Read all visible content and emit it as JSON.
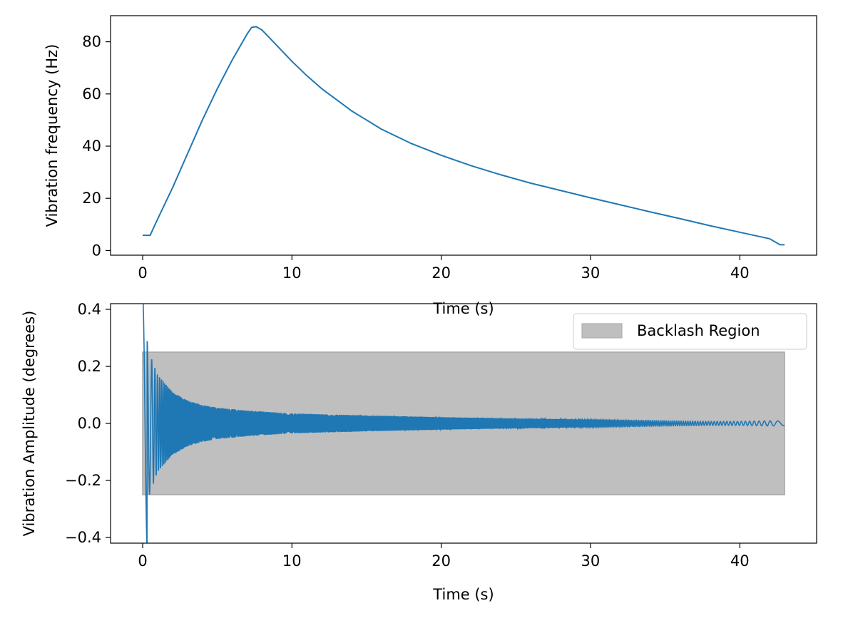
{
  "chart_data": [
    {
      "type": "line",
      "title": "",
      "xlabel": "Time (s)",
      "ylabel": "Vibration frequency (Hz)",
      "xlim": [
        -2.15,
        45.15
      ],
      "ylim": [
        -1.8,
        90.0
      ],
      "xticks": [
        0,
        10,
        20,
        30,
        40
      ],
      "yticks": [
        0,
        20,
        40,
        60,
        80
      ],
      "tick_labels_x": [
        "0",
        "10",
        "20",
        "30",
        "40"
      ],
      "tick_labels_y": [
        "0",
        "20",
        "40",
        "60",
        "80"
      ],
      "grid": false,
      "series": [
        {
          "color": "#1f77b4",
          "x": [
            0,
            0.5,
            1,
            2,
            3,
            4,
            5,
            6,
            6.5,
            7,
            7.3,
            7.6,
            8,
            8.5,
            9,
            10,
            11,
            12,
            14,
            16,
            18,
            20,
            22,
            24,
            26,
            28,
            30,
            32,
            34,
            36,
            38,
            40,
            42,
            42.7,
            43
          ],
          "y": [
            5.8,
            5.8,
            12,
            24,
            37,
            50,
            62,
            73,
            78,
            83,
            85.5,
            85.8,
            84.5,
            81.5,
            78.5,
            72.5,
            67,
            62,
            53.5,
            46.5,
            41,
            36.5,
            32.5,
            29,
            25.8,
            23,
            20.2,
            17.5,
            14.8,
            12.2,
            9.5,
            7,
            4.5,
            2.2,
            2.2
          ]
        }
      ]
    },
    {
      "type": "line",
      "title": "",
      "xlabel": "Time (s)",
      "ylabel": "Vibration Amplitude (degrees)",
      "xlim": [
        -2.15,
        45.15
      ],
      "ylim": [
        -0.42,
        0.42
      ],
      "xticks": [
        0,
        10,
        20,
        30,
        40
      ],
      "yticks": [
        -0.4,
        -0.2,
        0.0,
        0.2,
        0.4
      ],
      "tick_labels_x": [
        "0",
        "10",
        "20",
        "30",
        "40"
      ],
      "tick_labels_y": [
        "−0.4",
        "−0.2",
        "0.0",
        "0.2",
        "0.4"
      ],
      "grid": false,
      "legend": {
        "position": "top-right",
        "entries": [
          "Backlash Region"
        ]
      },
      "backlash_region": {
        "label": "Backlash Region",
        "x": [
          0,
          43
        ],
        "y": [
          -0.25,
          0.25
        ],
        "fill": "#bfbfbf",
        "edge": "#a6a6a6"
      },
      "series": [
        {
          "color": "#1f77b4",
          "description": "decaying oscillation",
          "envelope_t": [
            0.05,
            0.3,
            0.5,
            1,
            2,
            3,
            4,
            5,
            7,
            10,
            15,
            20,
            25,
            30,
            35,
            38,
            40,
            42,
            43
          ],
          "envelope_amp": [
            0.42,
            0.29,
            0.24,
            0.17,
            0.11,
            0.08,
            0.065,
            0.055,
            0.045,
            0.035,
            0.028,
            0.022,
            0.017,
            0.013,
            0.009,
            0.007,
            0.007,
            0.009,
            0.008
          ]
        }
      ]
    }
  ]
}
